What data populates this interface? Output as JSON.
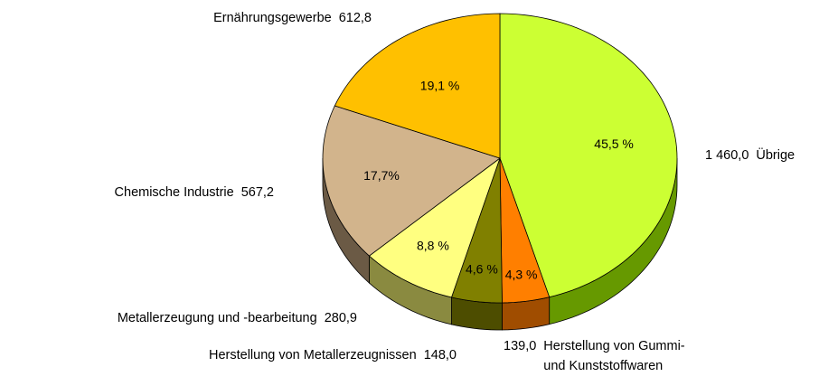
{
  "chart_data": {
    "type": "pie3d",
    "categories": [
      "Übrige",
      "Herstellung von Gummi-\nund Kunststoffwaren",
      "Herstellung von Metallerzeugnissen",
      "Metallerzeugung und -bearbeitung",
      "Chemische Industrie",
      "Ernährungsgewerbe"
    ],
    "values": [
      1460.0,
      139.0,
      148.0,
      280.9,
      567.2,
      612.8
    ],
    "value_labels": [
      "1 460,0",
      "139,0",
      "148,0",
      "280,9",
      "567,2",
      "612,8"
    ],
    "percents": [
      45.5,
      4.3,
      4.6,
      8.8,
      17.7,
      19.1
    ],
    "percent_labels": [
      "45,5 %",
      "4,3 %",
      "4,6 %",
      "8,8 %",
      "17,7%",
      "19,1 %"
    ],
    "colors": [
      "#ccff33",
      "#ff7f00",
      "#808000",
      "#ffff80",
      "#d2b48c",
      "#ffc000"
    ],
    "side_colors": [
      "#669900",
      "#a04d00",
      "#4d4d00",
      "#8a8a40",
      "#6b5a45",
      "#9a7400"
    ]
  }
}
